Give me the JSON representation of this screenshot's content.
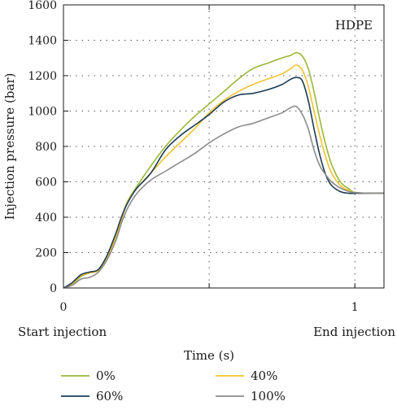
{
  "chart_data": {
    "type": "line",
    "title": "",
    "annotation": "HDPE",
    "xlabel": "Time (s)",
    "ylabel": "Injection pressure (bar)",
    "xlim": [
      0,
      1.1
    ],
    "ylim": [
      0,
      1600
    ],
    "x_ticks": [
      0,
      0.5,
      1
    ],
    "x_tick_labels": [
      "0",
      "",
      "1"
    ],
    "y_ticks": [
      0,
      200,
      400,
      600,
      800,
      1000,
      1200,
      1400,
      1600
    ],
    "y_tick_labels": [
      "0",
      "200",
      "400",
      "600",
      "800",
      "1000",
      "1200",
      "1400",
      "1600"
    ],
    "x_sublabels": {
      "start": "Start injection",
      "end": "End injection"
    },
    "grid": true,
    "legend_position": "bottom",
    "series": [
      {
        "name": "0%",
        "color": "#9ab83a",
        "points": [
          [
            0,
            0
          ],
          [
            0.03,
            20
          ],
          [
            0.06,
            65
          ],
          [
            0.09,
            85
          ],
          [
            0.12,
            100
          ],
          [
            0.15,
            175
          ],
          [
            0.18,
            300
          ],
          [
            0.2,
            400
          ],
          [
            0.22,
            490
          ],
          [
            0.25,
            570
          ],
          [
            0.3,
            690
          ],
          [
            0.35,
            800
          ],
          [
            0.4,
            890
          ],
          [
            0.45,
            970
          ],
          [
            0.5,
            1040
          ],
          [
            0.55,
            1110
          ],
          [
            0.6,
            1180
          ],
          [
            0.65,
            1240
          ],
          [
            0.7,
            1270
          ],
          [
            0.75,
            1300
          ],
          [
            0.78,
            1315
          ],
          [
            0.8,
            1330
          ],
          [
            0.82,
            1310
          ],
          [
            0.84,
            1240
          ],
          [
            0.86,
            1110
          ],
          [
            0.88,
            950
          ],
          [
            0.9,
            810
          ],
          [
            0.92,
            700
          ],
          [
            0.95,
            600
          ],
          [
            0.98,
            560
          ],
          [
            1.0,
            540
          ],
          [
            1.05,
            535
          ],
          [
            1.1,
            535
          ]
        ]
      },
      {
        "name": "40%",
        "color": "#f2c230",
        "points": [
          [
            0,
            0
          ],
          [
            0.03,
            25
          ],
          [
            0.06,
            70
          ],
          [
            0.09,
            85
          ],
          [
            0.12,
            100
          ],
          [
            0.15,
            170
          ],
          [
            0.18,
            290
          ],
          [
            0.2,
            390
          ],
          [
            0.22,
            485
          ],
          [
            0.25,
            560
          ],
          [
            0.3,
            650
          ],
          [
            0.35,
            740
          ],
          [
            0.4,
            820
          ],
          [
            0.45,
            900
          ],
          [
            0.5,
            990
          ],
          [
            0.55,
            1060
          ],
          [
            0.6,
            1110
          ],
          [
            0.65,
            1150
          ],
          [
            0.7,
            1180
          ],
          [
            0.75,
            1210
          ],
          [
            0.78,
            1240
          ],
          [
            0.8,
            1260
          ],
          [
            0.82,
            1230
          ],
          [
            0.84,
            1140
          ],
          [
            0.86,
            1000
          ],
          [
            0.88,
            860
          ],
          [
            0.9,
            740
          ],
          [
            0.92,
            650
          ],
          [
            0.95,
            580
          ],
          [
            0.98,
            550
          ],
          [
            1.0,
            540
          ],
          [
            1.05,
            535
          ],
          [
            1.1,
            535
          ]
        ]
      },
      {
        "name": "60%",
        "color": "#1d3b53",
        "points": [
          [
            0,
            0
          ],
          [
            0.03,
            30
          ],
          [
            0.06,
            75
          ],
          [
            0.09,
            90
          ],
          [
            0.12,
            105
          ],
          [
            0.15,
            185
          ],
          [
            0.18,
            310
          ],
          [
            0.2,
            405
          ],
          [
            0.22,
            480
          ],
          [
            0.25,
            560
          ],
          [
            0.3,
            650
          ],
          [
            0.35,
            780
          ],
          [
            0.4,
            860
          ],
          [
            0.45,
            920
          ],
          [
            0.5,
            980
          ],
          [
            0.55,
            1050
          ],
          [
            0.6,
            1090
          ],
          [
            0.65,
            1100
          ],
          [
            0.7,
            1120
          ],
          [
            0.75,
            1150
          ],
          [
            0.78,
            1180
          ],
          [
            0.8,
            1190
          ],
          [
            0.82,
            1170
          ],
          [
            0.84,
            1060
          ],
          [
            0.86,
            900
          ],
          [
            0.88,
            750
          ],
          [
            0.9,
            640
          ],
          [
            0.92,
            580
          ],
          [
            0.95,
            545
          ],
          [
            0.98,
            535
          ],
          [
            1.0,
            535
          ],
          [
            1.05,
            535
          ],
          [
            1.1,
            535
          ]
        ]
      },
      {
        "name": "100%",
        "color": "#8c8c8c",
        "points": [
          [
            0,
            0
          ],
          [
            0.03,
            15
          ],
          [
            0.06,
            50
          ],
          [
            0.09,
            60
          ],
          [
            0.12,
            90
          ],
          [
            0.15,
            160
          ],
          [
            0.18,
            270
          ],
          [
            0.2,
            370
          ],
          [
            0.22,
            450
          ],
          [
            0.25,
            530
          ],
          [
            0.3,
            610
          ],
          [
            0.35,
            660
          ],
          [
            0.4,
            710
          ],
          [
            0.45,
            760
          ],
          [
            0.5,
            820
          ],
          [
            0.55,
            870
          ],
          [
            0.6,
            910
          ],
          [
            0.65,
            930
          ],
          [
            0.7,
            960
          ],
          [
            0.75,
            990
          ],
          [
            0.78,
            1020
          ],
          [
            0.8,
            1025
          ],
          [
            0.82,
            980
          ],
          [
            0.84,
            900
          ],
          [
            0.86,
            780
          ],
          [
            0.88,
            690
          ],
          [
            0.9,
            640
          ],
          [
            0.92,
            600
          ],
          [
            0.95,
            565
          ],
          [
            0.98,
            545
          ],
          [
            1.0,
            540
          ],
          [
            1.05,
            535
          ],
          [
            1.1,
            535
          ]
        ]
      }
    ]
  }
}
